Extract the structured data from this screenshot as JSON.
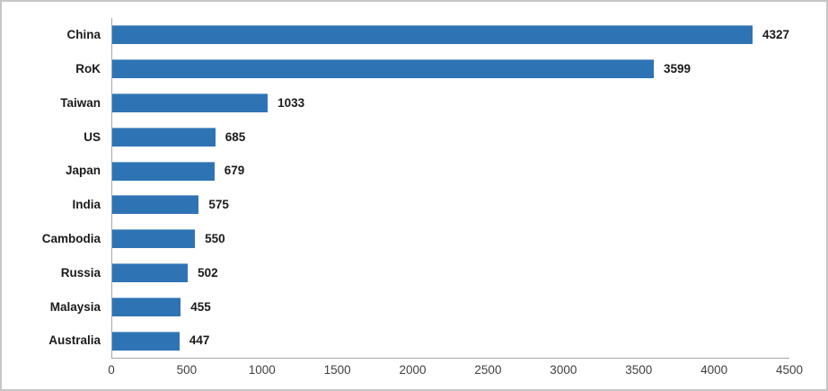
{
  "chart_data": {
    "type": "bar",
    "orientation": "horizontal",
    "title": "",
    "xlabel": "",
    "ylabel": "",
    "categories": [
      "China",
      "RoK",
      "Taiwan",
      "US",
      "Japan",
      "India",
      "Cambodia",
      "Russia",
      "Malaysia",
      "Australia"
    ],
    "values": [
      4327,
      3599,
      1033,
      685,
      679,
      575,
      550,
      502,
      455,
      447
    ],
    "data_labels": [
      "4327",
      "3599",
      "1033",
      "685",
      "679",
      "575",
      "550",
      "502",
      "455",
      "447"
    ],
    "xlim": [
      0,
      4500
    ],
    "x_ticks": [
      0,
      500,
      1000,
      1500,
      2000,
      2500,
      3000,
      3500,
      4000,
      4500
    ],
    "grid": false,
    "legend": false,
    "colors": {
      "bar": "#2e74b5",
      "axis_line": "#a6a6a6",
      "tick_label": "#404040",
      "category_label": "#1a1a1a",
      "value_label": "#1a1a1a",
      "frame_border": "#c6c6c6",
      "background": "#ffffff"
    }
  }
}
